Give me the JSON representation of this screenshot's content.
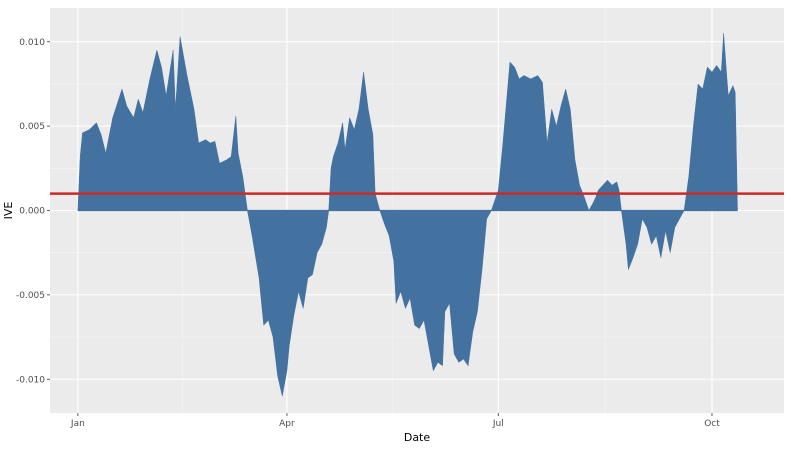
{
  "chart_data": {
    "type": "area",
    "title": "",
    "xlabel": "Date",
    "ylabel": "IVE",
    "x_ticks": [
      {
        "label": "Jan",
        "date": "2019-01-01"
      },
      {
        "label": "Apr",
        "date": "2019-04-01"
      },
      {
        "label": "Jul",
        "date": "2019-07-01"
      },
      {
        "label": "Oct",
        "date": "2019-10-01"
      }
    ],
    "xlim": [
      "2018-12-20",
      "2019-11-01"
    ],
    "y_ticks": [
      -0.01,
      -0.005,
      0.0,
      0.005,
      0.01
    ],
    "y_tick_labels": [
      "-0.010",
      "-0.005",
      "0.000",
      "0.005",
      "0.010"
    ],
    "ylim": [
      -0.012,
      0.012
    ],
    "grid": true,
    "legend": "none",
    "series": [
      {
        "color": "#4472a0",
        "points": [
          [
            "2019-01-01",
            0.0
          ],
          [
            "2019-01-02",
            0.0032
          ],
          [
            "2019-01-03",
            0.0046
          ],
          [
            "2019-01-06",
            0.0048
          ],
          [
            "2019-01-09",
            0.0052
          ],
          [
            "2019-01-11",
            0.0045
          ],
          [
            "2019-01-13",
            0.0034
          ],
          [
            "2019-01-16",
            0.0055
          ],
          [
            "2019-01-20",
            0.0072
          ],
          [
            "2019-01-22",
            0.0062
          ],
          [
            "2019-01-25",
            0.0055
          ],
          [
            "2019-01-27",
            0.0066
          ],
          [
            "2019-01-29",
            0.0058
          ],
          [
            "2019-02-01",
            0.0078
          ],
          [
            "2019-02-04",
            0.0095
          ],
          [
            "2019-02-06",
            0.0085
          ],
          [
            "2019-02-08",
            0.0068
          ],
          [
            "2019-02-11",
            0.0095
          ],
          [
            "2019-02-12",
            0.006
          ],
          [
            "2019-02-14",
            0.0103
          ],
          [
            "2019-02-17",
            0.008
          ],
          [
            "2019-02-20",
            0.006
          ],
          [
            "2019-02-22",
            0.004
          ],
          [
            "2019-02-25",
            0.0042
          ],
          [
            "2019-02-27",
            0.004
          ],
          [
            "2019-03-01",
            0.0041
          ],
          [
            "2019-03-03",
            0.0028
          ],
          [
            "2019-03-06",
            0.003
          ],
          [
            "2019-03-08",
            0.0032
          ],
          [
            "2019-03-10",
            0.0056
          ],
          [
            "2019-03-11",
            0.0034
          ],
          [
            "2019-03-13",
            0.002
          ],
          [
            "2019-03-15",
            0.0
          ],
          [
            "2019-03-17",
            -0.0015
          ],
          [
            "2019-03-20",
            -0.004
          ],
          [
            "2019-03-22",
            -0.0068
          ],
          [
            "2019-03-24",
            -0.0065
          ],
          [
            "2019-03-26",
            -0.0075
          ],
          [
            "2019-03-28",
            -0.0098
          ],
          [
            "2019-03-30",
            -0.011
          ],
          [
            "2019-04-01",
            -0.0095
          ],
          [
            "2019-04-02",
            -0.008
          ],
          [
            "2019-04-04",
            -0.0062
          ],
          [
            "2019-04-06",
            -0.0048
          ],
          [
            "2019-04-08",
            -0.0058
          ],
          [
            "2019-04-10",
            -0.004
          ],
          [
            "2019-04-12",
            -0.0038
          ],
          [
            "2019-04-14",
            -0.0025
          ],
          [
            "2019-04-16",
            -0.002
          ],
          [
            "2019-04-18",
            -0.001
          ],
          [
            "2019-04-19",
            0.0
          ],
          [
            "2019-04-20",
            0.0025
          ],
          [
            "2019-04-21",
            0.0032
          ],
          [
            "2019-04-23",
            0.004
          ],
          [
            "2019-04-25",
            0.0052
          ],
          [
            "2019-04-26",
            0.0036
          ],
          [
            "2019-04-28",
            0.0055
          ],
          [
            "2019-04-30",
            0.0048
          ],
          [
            "2019-05-02",
            0.006
          ],
          [
            "2019-05-04",
            0.0082
          ],
          [
            "2019-05-06",
            0.006
          ],
          [
            "2019-05-08",
            0.0045
          ],
          [
            "2019-05-09",
            0.001
          ],
          [
            "2019-05-11",
            0.0
          ],
          [
            "2019-05-13",
            -0.0008
          ],
          [
            "2019-05-15",
            -0.0015
          ],
          [
            "2019-05-17",
            -0.003
          ],
          [
            "2019-05-18",
            -0.0055
          ],
          [
            "2019-05-20",
            -0.0048
          ],
          [
            "2019-05-22",
            -0.0058
          ],
          [
            "2019-05-24",
            -0.0052
          ],
          [
            "2019-05-26",
            -0.0068
          ],
          [
            "2019-05-28",
            -0.007
          ],
          [
            "2019-05-30",
            -0.0065
          ],
          [
            "2019-06-01",
            -0.008
          ],
          [
            "2019-06-03",
            -0.0095
          ],
          [
            "2019-06-05",
            -0.009
          ],
          [
            "2019-06-07",
            -0.0092
          ],
          [
            "2019-06-08",
            -0.006
          ],
          [
            "2019-06-10",
            -0.0055
          ],
          [
            "2019-06-12",
            -0.0085
          ],
          [
            "2019-06-14",
            -0.009
          ],
          [
            "2019-06-16",
            -0.0088
          ],
          [
            "2019-06-18",
            -0.0092
          ],
          [
            "2019-06-20",
            -0.0072
          ],
          [
            "2019-06-22",
            -0.006
          ],
          [
            "2019-06-24",
            -0.0035
          ],
          [
            "2019-06-26",
            -0.0005
          ],
          [
            "2019-06-28",
            0.0
          ],
          [
            "2019-07-01",
            0.0012
          ],
          [
            "2019-07-03",
            0.004
          ],
          [
            "2019-07-05",
            0.0072
          ],
          [
            "2019-07-06",
            0.0088
          ],
          [
            "2019-07-08",
            0.0085
          ],
          [
            "2019-07-10",
            0.0078
          ],
          [
            "2019-07-12",
            0.008
          ],
          [
            "2019-07-15",
            0.0078
          ],
          [
            "2019-07-18",
            0.008
          ],
          [
            "2019-07-20",
            0.0076
          ],
          [
            "2019-07-22",
            0.004
          ],
          [
            "2019-07-24",
            0.006
          ],
          [
            "2019-07-26",
            0.005
          ],
          [
            "2019-07-28",
            0.0062
          ],
          [
            "2019-07-30",
            0.0072
          ],
          [
            "2019-08-01",
            0.006
          ],
          [
            "2019-08-03",
            0.003
          ],
          [
            "2019-08-05",
            0.0015
          ],
          [
            "2019-08-07",
            0.0008
          ],
          [
            "2019-08-09",
            0.0
          ],
          [
            "2019-08-11",
            0.0005
          ],
          [
            "2019-08-12",
            0.0008
          ],
          [
            "2019-08-13",
            0.0012
          ],
          [
            "2019-08-15",
            0.0015
          ],
          [
            "2019-08-17",
            0.0018
          ],
          [
            "2019-08-19",
            0.0015
          ],
          [
            "2019-08-21",
            0.0017
          ],
          [
            "2019-08-22",
            0.0012
          ],
          [
            "2019-08-23",
            0.0
          ],
          [
            "2019-08-25",
            -0.002
          ],
          [
            "2019-08-26",
            -0.0035
          ],
          [
            "2019-08-28",
            -0.0028
          ],
          [
            "2019-08-30",
            -0.002
          ],
          [
            "2019-09-01",
            -0.0005
          ],
          [
            "2019-09-03",
            -0.001
          ],
          [
            "2019-09-05",
            -0.002
          ],
          [
            "2019-09-07",
            -0.0015
          ],
          [
            "2019-09-09",
            -0.0028
          ],
          [
            "2019-09-11",
            -0.0012
          ],
          [
            "2019-09-13",
            -0.0025
          ],
          [
            "2019-09-15",
            -0.001
          ],
          [
            "2019-09-17",
            -0.0005
          ],
          [
            "2019-09-19",
            0.0
          ],
          [
            "2019-09-21",
            0.002
          ],
          [
            "2019-09-23",
            0.005
          ],
          [
            "2019-09-25",
            0.0075
          ],
          [
            "2019-09-27",
            0.0072
          ],
          [
            "2019-09-29",
            0.0085
          ],
          [
            "2019-10-01",
            0.0082
          ],
          [
            "2019-10-03",
            0.0086
          ],
          [
            "2019-10-05",
            0.0082
          ],
          [
            "2019-10-06",
            0.0105
          ],
          [
            "2019-10-08",
            0.0068
          ],
          [
            "2019-10-10",
            0.0074
          ],
          [
            "2019-10-11",
            0.007
          ],
          [
            "2019-10-12",
            0.0
          ]
        ]
      }
    ],
    "reference_lines": [
      {
        "orientation": "horizontal",
        "y": 0.001,
        "color": "#cc2a2a"
      }
    ],
    "colors": {
      "panel_background": "#ebebeb",
      "grid_major": "#ffffff",
      "grid_minor": "#f5f5f5",
      "tick_text": "#4d4d4d"
    }
  }
}
